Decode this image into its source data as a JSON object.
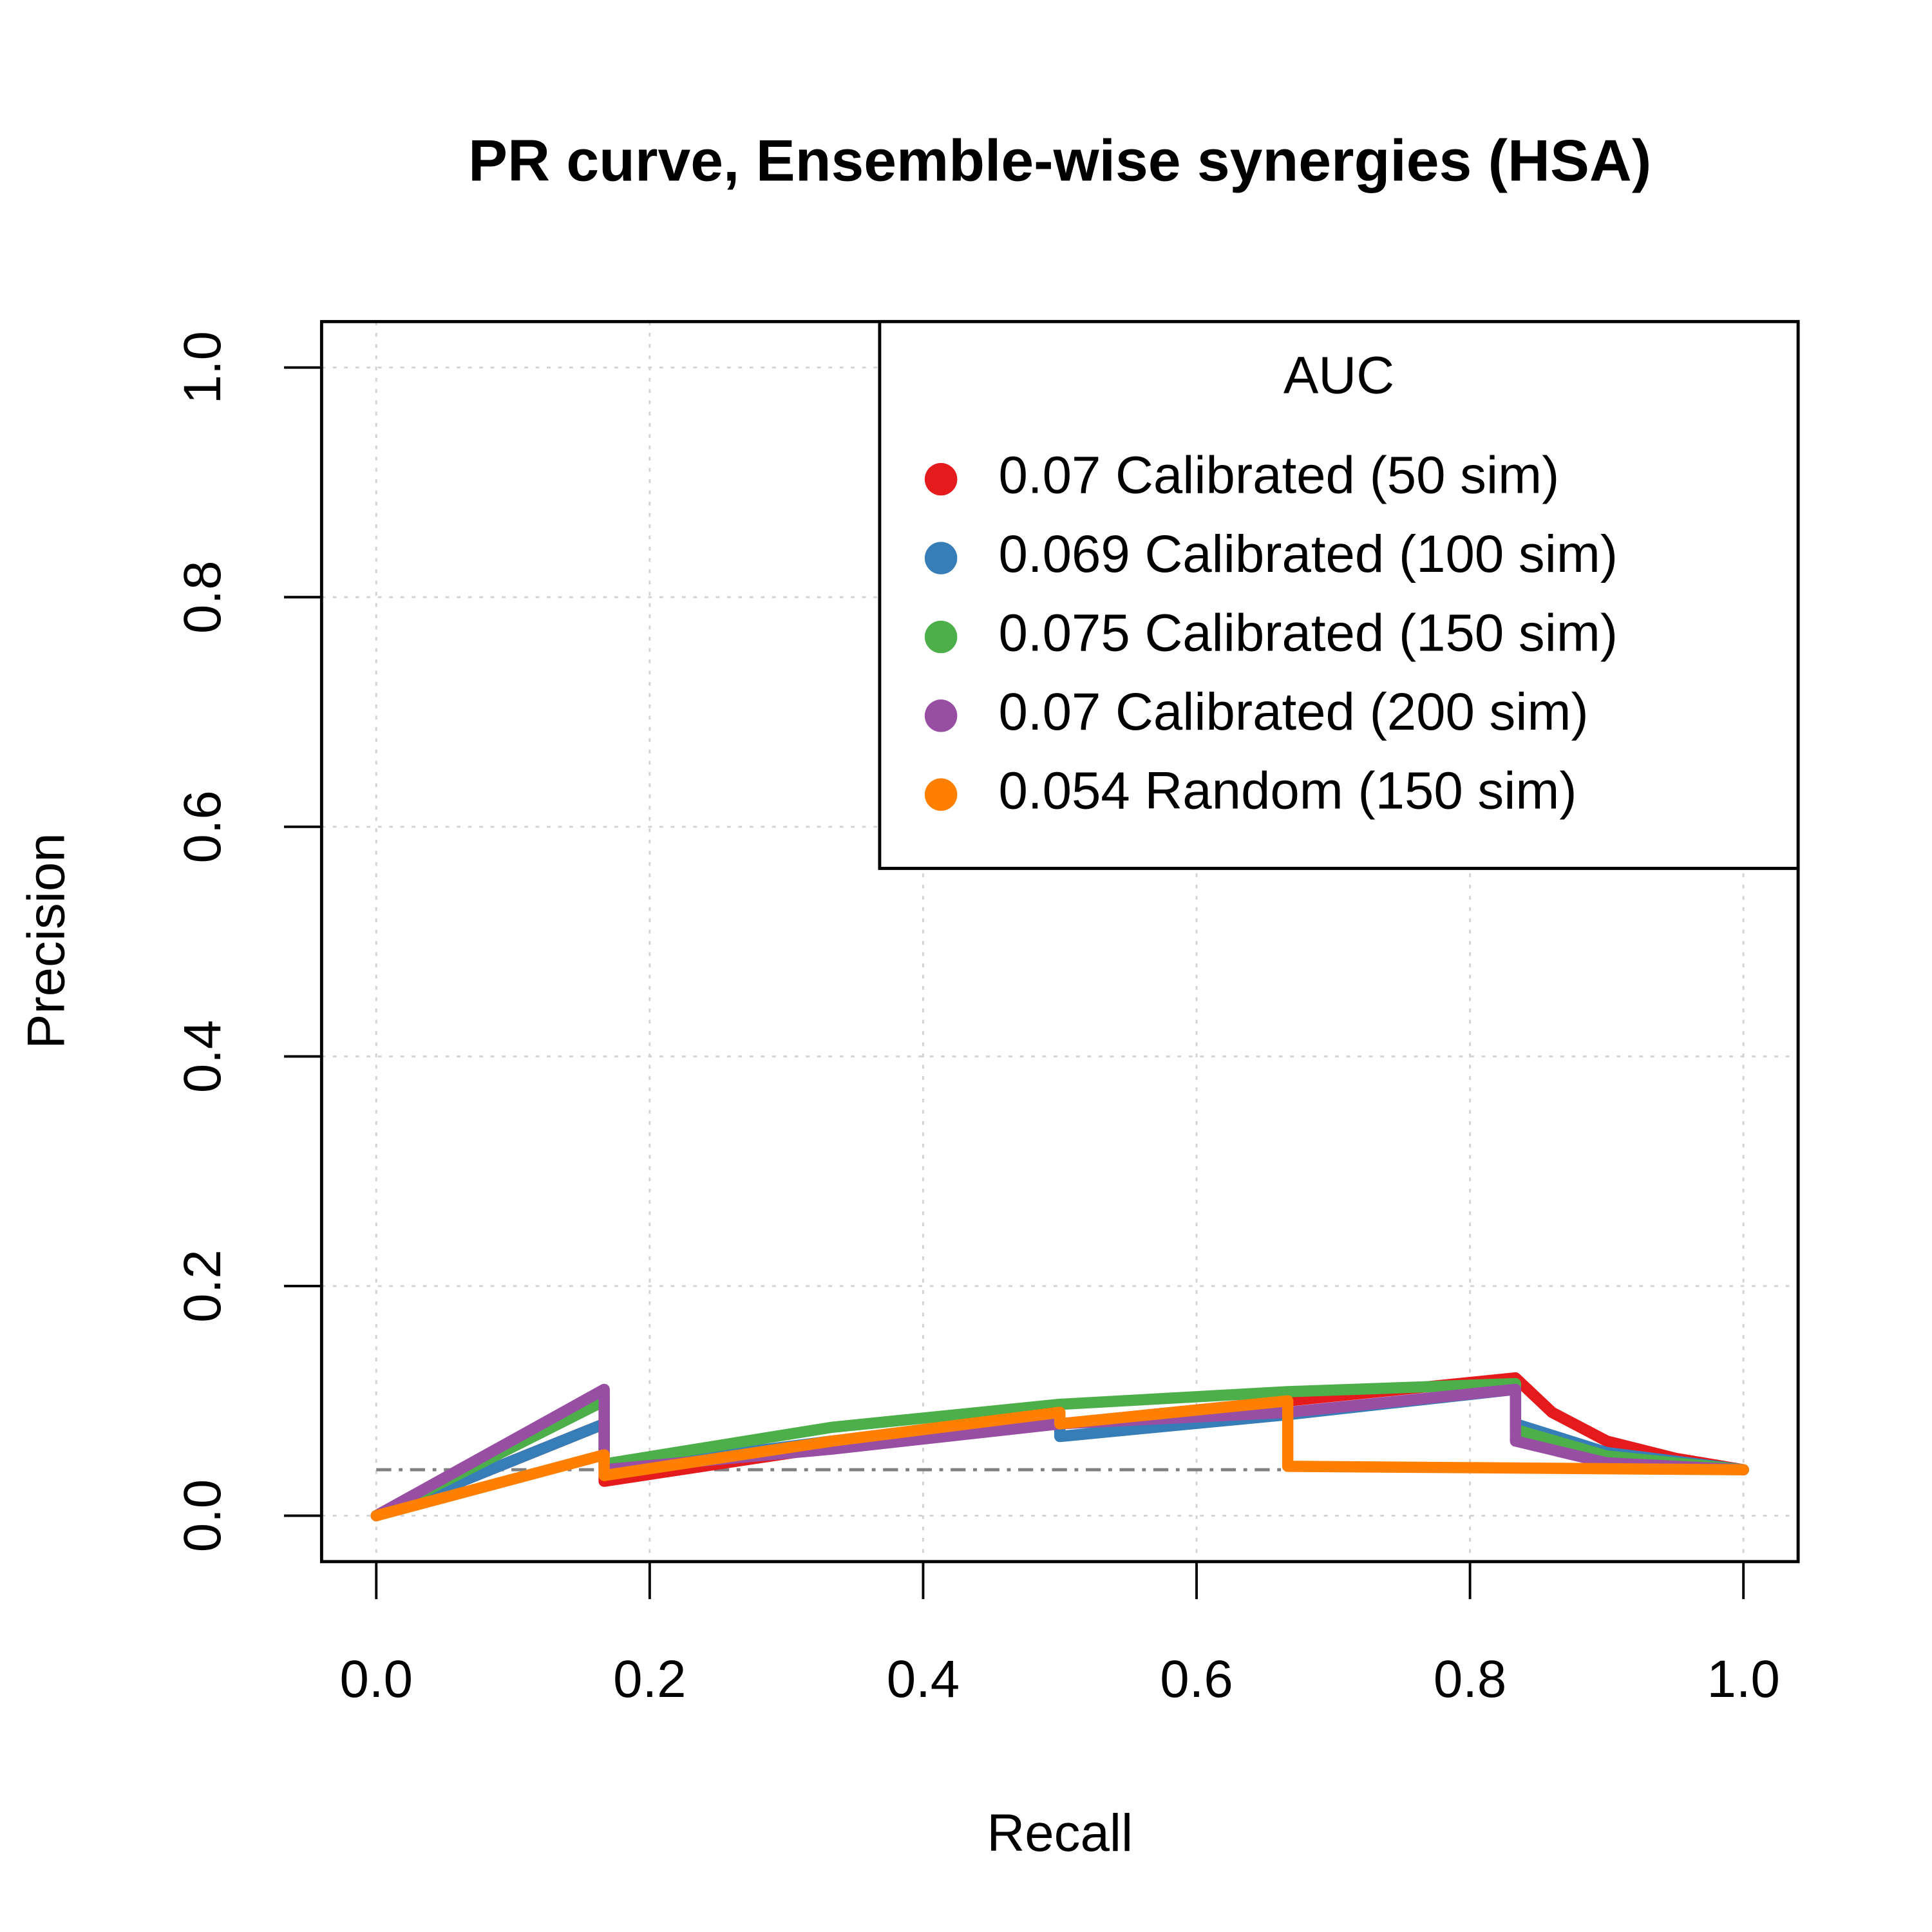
{
  "chart_data": {
    "type": "line",
    "title": "PR curve, Ensemble-wise synergies (HSA)",
    "x_label": "Recall",
    "y_label": "Precision",
    "xlim": [
      -0.04,
      1.04
    ],
    "ylim": [
      -0.04,
      1.04
    ],
    "xticks": [
      {
        "value": 0,
        "label": "0.0"
      },
      {
        "value": 0.2,
        "label": "0.2"
      },
      {
        "value": 0.4,
        "label": "0.4"
      },
      {
        "value": 0.6,
        "label": "0.6"
      },
      {
        "value": 0.8,
        "label": "0.8"
      },
      {
        "value": 1,
        "label": "1.0"
      }
    ],
    "yticks": [
      {
        "value": 0,
        "label": "0.0"
      },
      {
        "value": 0.2,
        "label": "0.2"
      },
      {
        "value": 0.4,
        "label": "0.4"
      },
      {
        "value": 0.6,
        "label": "0.6"
      },
      {
        "value": 0.8,
        "label": "0.8"
      },
      {
        "value": 1,
        "label": "1.0"
      }
    ],
    "grid": true,
    "baseline": 0.04,
    "legend_title": "AUC",
    "legend_position": "top-right",
    "series": [
      {
        "name": "0.07 Calibrated (50 sim)",
        "color": "#e41a1c",
        "x": [
          0,
          0.1667,
          0.1667,
          0.3333,
          0.5,
          0.6667,
          0.8333,
          0.86,
          0.9,
          0.95,
          1
        ],
        "values": [
          0,
          0.08,
          0.03,
          0.06,
          0.08,
          0.1,
          0.12,
          0.09,
          0.065,
          0.05,
          0.04
        ]
      },
      {
        "name": "0.069 Calibrated (100 sim)",
        "color": "#377eb8",
        "x": [
          0,
          0.1667,
          0.1667,
          0.3333,
          0.5,
          0.5,
          0.6667,
          0.8333,
          0.8333,
          0.9,
          1
        ],
        "values": [
          0,
          0.08,
          0.04,
          0.065,
          0.085,
          0.069,
          0.088,
          0.11,
          0.08,
          0.055,
          0.04
        ]
      },
      {
        "name": "0.075 Calibrated (150 sim)",
        "color": "#4daf4a",
        "x": [
          0,
          0.1667,
          0.1667,
          0.3333,
          0.5,
          0.6667,
          0.8333,
          0.8333,
          0.9,
          1
        ],
        "values": [
          0,
          0.1,
          0.045,
          0.077,
          0.097,
          0.108,
          0.115,
          0.075,
          0.052,
          0.04
        ]
      },
      {
        "name": "0.07 Calibrated (200 sim)",
        "color": "#984ea3",
        "x": [
          0,
          0.1667,
          0.1667,
          0.3333,
          0.5,
          0.6667,
          0.8333,
          0.8333,
          0.9,
          1
        ],
        "values": [
          0,
          0.11,
          0.04,
          0.058,
          0.08,
          0.09,
          0.11,
          0.065,
          0.046,
          0.04
        ]
      },
      {
        "name": "0.054 Random (150 sim)",
        "color": "#ff7f00",
        "x": [
          0,
          0.1667,
          0.1667,
          0.3333,
          0.5,
          0.5,
          0.6667,
          0.6667,
          1
        ],
        "values": [
          0,
          0.053,
          0.035,
          0.065,
          0.09,
          0.08,
          0.1,
          0.043,
          0.04
        ]
      }
    ]
  }
}
